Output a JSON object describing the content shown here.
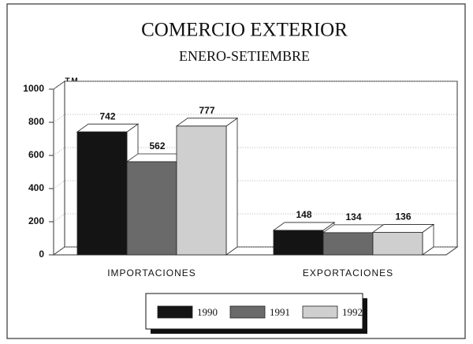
{
  "chart_data": {
    "type": "bar3d",
    "title": "COMERCIO EXTERIOR",
    "subtitle": "ENERO-SETIEMBRE",
    "y_axis_label": "T.M.",
    "categories": [
      "IMPORTACIONES",
      "EXPORTACIONES"
    ],
    "series": [
      {
        "name": "1990",
        "color": "#141414",
        "values": [
          742,
          148
        ]
      },
      {
        "name": "1991",
        "color": "#6a6a6a",
        "values": [
          562,
          134
        ]
      },
      {
        "name": "1992",
        "color": "#cfcfcf",
        "values": [
          777,
          136
        ]
      }
    ],
    "ylim": [
      0,
      1000
    ],
    "yticks": [
      0,
      200,
      400,
      600,
      800,
      1000
    ],
    "grid": true
  }
}
